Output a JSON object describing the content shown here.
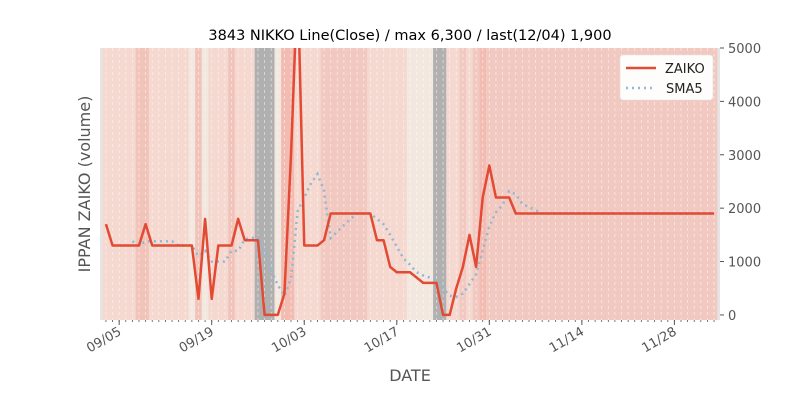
{
  "chart_data": {
    "type": "line",
    "title": "3843 NIKKO Line(Close) / max 6,300 / last(12/04) 1,900",
    "xlabel": "DATE",
    "ylabel": "IPPAN ZAIKO (volume)",
    "start_date": "09/03",
    "xticks": [
      {
        "day": 2,
        "label": "09/05"
      },
      {
        "day": 16,
        "label": "09/19"
      },
      {
        "day": 30,
        "label": "10/03"
      },
      {
        "day": 44,
        "label": "10/17"
      },
      {
        "day": 58,
        "label": "10/31"
      },
      {
        "day": 72,
        "label": "11/14"
      },
      {
        "day": 86,
        "label": "11/28"
      }
    ],
    "yticks": [
      0,
      1000,
      2000,
      3000,
      4000,
      5000
    ],
    "ylim": [
      -95,
      5000
    ],
    "xlim": [
      -0.9,
      92.9
    ],
    "legend": {
      "position": "top-right",
      "entries": [
        "ZAIKO",
        "SMA5"
      ]
    },
    "colors": {
      "zaiko": "#e24a33",
      "sma": "#8eb8d4"
    },
    "series": [
      {
        "name": "ZAIKO",
        "values": [
          1700,
          1300,
          1300,
          1300,
          1300,
          1300,
          1700,
          1300,
          1300,
          1300,
          1300,
          1300,
          1300,
          1300,
          300,
          1800,
          300,
          1300,
          1300,
          1300,
          1800,
          1400,
          1400,
          1400,
          0,
          0,
          0,
          400,
          3000,
          6300,
          1300,
          1300,
          1300,
          1400,
          1900,
          1900,
          1900,
          1900,
          1900,
          1900,
          1900,
          1400,
          1400,
          900,
          800,
          800,
          800,
          700,
          600,
          600,
          600,
          0,
          0,
          500,
          900,
          1500,
          900,
          2200,
          2800,
          2200,
          2200,
          2200,
          1900,
          1900,
          1900,
          1900,
          1900,
          1900,
          1900,
          1900,
          1900,
          1900,
          1900,
          1900,
          1900,
          1900,
          1900,
          1900,
          1900,
          1900,
          1900,
          1900,
          1900,
          1900,
          1900,
          1900,
          1900,
          1900,
          1900,
          1900,
          1900,
          1900,
          1900
        ]
      },
      {
        "name": "SMA5",
        "window": 5
      }
    ],
    "bands": [
      {
        "from": 0,
        "to": 4,
        "color": "#f5d8cf"
      },
      {
        "from": 5,
        "to": 6,
        "color": "#f2c3b9"
      },
      {
        "from": 7,
        "to": 12,
        "color": "#f5d8cf"
      },
      {
        "from": 13,
        "to": 13,
        "color": "#f2e8df"
      },
      {
        "from": 14,
        "to": 14,
        "color": "#f2c3b9"
      },
      {
        "from": 15,
        "to": 15,
        "color": "#f2e8df"
      },
      {
        "from": 16,
        "to": 18,
        "color": "#f5d8cf"
      },
      {
        "from": 19,
        "to": 19,
        "color": "#f2c3b9"
      },
      {
        "from": 20,
        "to": 22,
        "color": "#f5d8cf"
      },
      {
        "from": 23,
        "to": 25,
        "color": "#b0b0b0"
      },
      {
        "from": 26,
        "to": 26,
        "color": "#f2e8df"
      },
      {
        "from": 27,
        "to": 28,
        "color": "#f2bcb2"
      },
      {
        "from": 29,
        "to": 32,
        "color": "#f5d8cf"
      },
      {
        "from": 33,
        "to": 39,
        "color": "#f2c9c0"
      },
      {
        "from": 40,
        "to": 45,
        "color": "#f5d8cf"
      },
      {
        "from": 46,
        "to": 49,
        "color": "#f2e8df"
      },
      {
        "from": 50,
        "to": 51,
        "color": "#b0b0b0"
      },
      {
        "from": 52,
        "to": 53,
        "color": "#f5d8cf"
      },
      {
        "from": 54,
        "to": 54,
        "color": "#f2c9c0"
      },
      {
        "from": 55,
        "to": 55,
        "color": "#f5d8cf"
      },
      {
        "from": 56,
        "to": 56,
        "color": "#f2c9c0"
      },
      {
        "from": 57,
        "to": 57,
        "color": "#f2bcb2"
      },
      {
        "from": 58,
        "to": 92,
        "color": "#f2c9c0"
      }
    ]
  }
}
